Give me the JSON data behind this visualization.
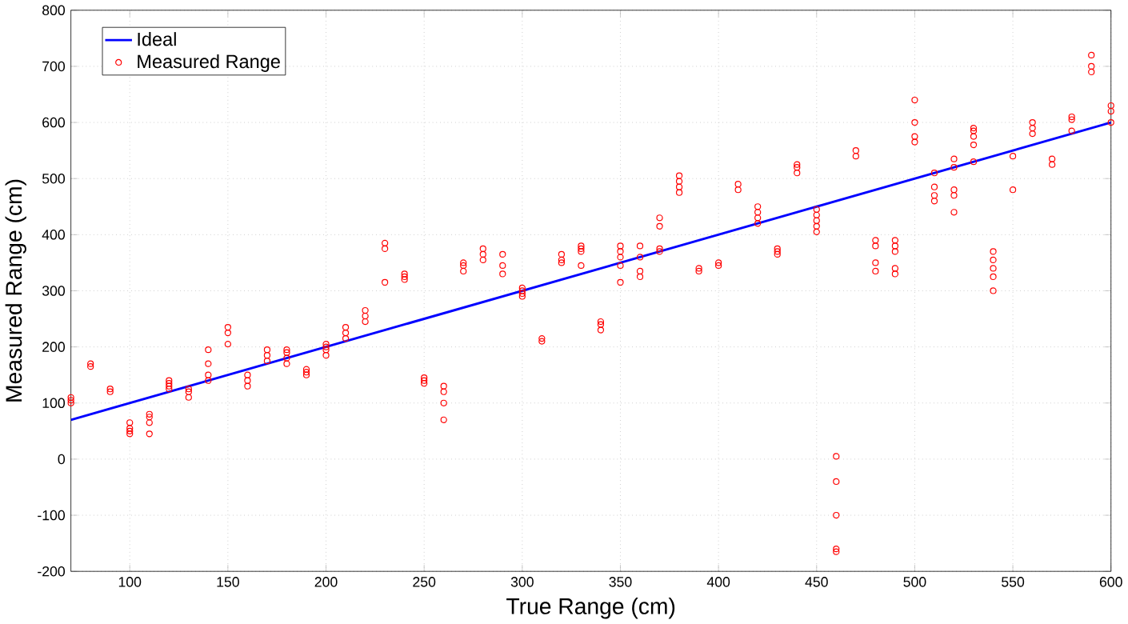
{
  "chart_data": {
    "type": "scatter",
    "xlabel": "True Range (cm)",
    "ylabel": "Measured Range (cm)",
    "xlim": [
      70,
      600
    ],
    "ylim": [
      -200,
      800
    ],
    "xticks": [
      100,
      150,
      200,
      250,
      300,
      350,
      400,
      450,
      500,
      550,
      600
    ],
    "yticks": [
      -200,
      -100,
      0,
      100,
      200,
      300,
      400,
      500,
      600,
      700,
      800
    ],
    "grid": true,
    "legend": "top left",
    "series": [
      {
        "name": "Ideal",
        "type": "line",
        "color": "#0000ff",
        "marker": "none",
        "line_style": "solid",
        "x": [
          70,
          600
        ],
        "values": [
          70,
          600
        ]
      },
      {
        "name": "Measured Range",
        "color": "#ff0000",
        "marker": "circle",
        "x": [
          70,
          70,
          70,
          80,
          80,
          90,
          90,
          100,
          100,
          100,
          100,
          110,
          110,
          110,
          110,
          120,
          120,
          120,
          120,
          130,
          130,
          130,
          140,
          140,
          140,
          140,
          150,
          150,
          150,
          160,
          160,
          160,
          170,
          170,
          170,
          180,
          180,
          180,
          180,
          190,
          190,
          190,
          200,
          200,
          200,
          200,
          210,
          210,
          210,
          220,
          220,
          220,
          230,
          230,
          230,
          240,
          240,
          240,
          250,
          250,
          250,
          260,
          260,
          260,
          260,
          270,
          270,
          270,
          280,
          280,
          280,
          290,
          290,
          290,
          300,
          300,
          300,
          300,
          310,
          310,
          320,
          320,
          320,
          330,
          330,
          330,
          330,
          340,
          340,
          340,
          350,
          350,
          350,
          350,
          350,
          360,
          360,
          360,
          360,
          370,
          370,
          370,
          370,
          380,
          380,
          380,
          380,
          390,
          390,
          400,
          400,
          410,
          410,
          420,
          420,
          420,
          420,
          430,
          430,
          430,
          440,
          440,
          440,
          450,
          450,
          450,
          450,
          450,
          460,
          460,
          460,
          460,
          460,
          470,
          470,
          480,
          480,
          480,
          480,
          490,
          490,
          490,
          490,
          490,
          500,
          500,
          500,
          500,
          510,
          510,
          510,
          510,
          520,
          520,
          520,
          520,
          520,
          530,
          530,
          530,
          530,
          530,
          540,
          540,
          540,
          540,
          540,
          550,
          550,
          560,
          560,
          560,
          570,
          570,
          580,
          580,
          580,
          590,
          590,
          590,
          600,
          600,
          600
        ],
        "values": [
          100,
          105,
          110,
          165,
          170,
          120,
          125,
          45,
          50,
          55,
          65,
          45,
          65,
          75,
          80,
          125,
          130,
          135,
          140,
          110,
          120,
          125,
          140,
          150,
          170,
          195,
          205,
          225,
          235,
          130,
          140,
          150,
          175,
          185,
          195,
          170,
          180,
          190,
          195,
          150,
          155,
          160,
          185,
          195,
          200,
          205,
          215,
          225,
          235,
          245,
          255,
          265,
          315,
          375,
          385,
          320,
          325,
          330,
          135,
          140,
          145,
          70,
          100,
          120,
          130,
          335,
          345,
          350,
          355,
          365,
          375,
          330,
          345,
          365,
          290,
          295,
          300,
          305,
          210,
          215,
          350,
          355,
          365,
          345,
          370,
          375,
          380,
          230,
          240,
          245,
          315,
          345,
          360,
          370,
          380,
          325,
          335,
          360,
          380,
          370,
          375,
          415,
          430,
          475,
          485,
          495,
          505,
          335,
          340,
          345,
          350,
          480,
          490,
          420,
          430,
          440,
          450,
          365,
          370,
          375,
          510,
          520,
          525,
          405,
          415,
          425,
          435,
          445,
          -165,
          -160,
          -100,
          -40,
          5,
          540,
          550,
          335,
          350,
          380,
          390,
          330,
          340,
          370,
          380,
          390,
          565,
          575,
          600,
          640,
          460,
          470,
          485,
          510,
          440,
          470,
          480,
          520,
          535,
          530,
          560,
          575,
          585,
          590,
          300,
          325,
          340,
          355,
          370,
          480,
          540,
          580,
          590,
          600,
          525,
          535,
          585,
          605,
          610,
          690,
          700,
          720,
          600,
          620,
          630
        ]
      }
    ]
  }
}
